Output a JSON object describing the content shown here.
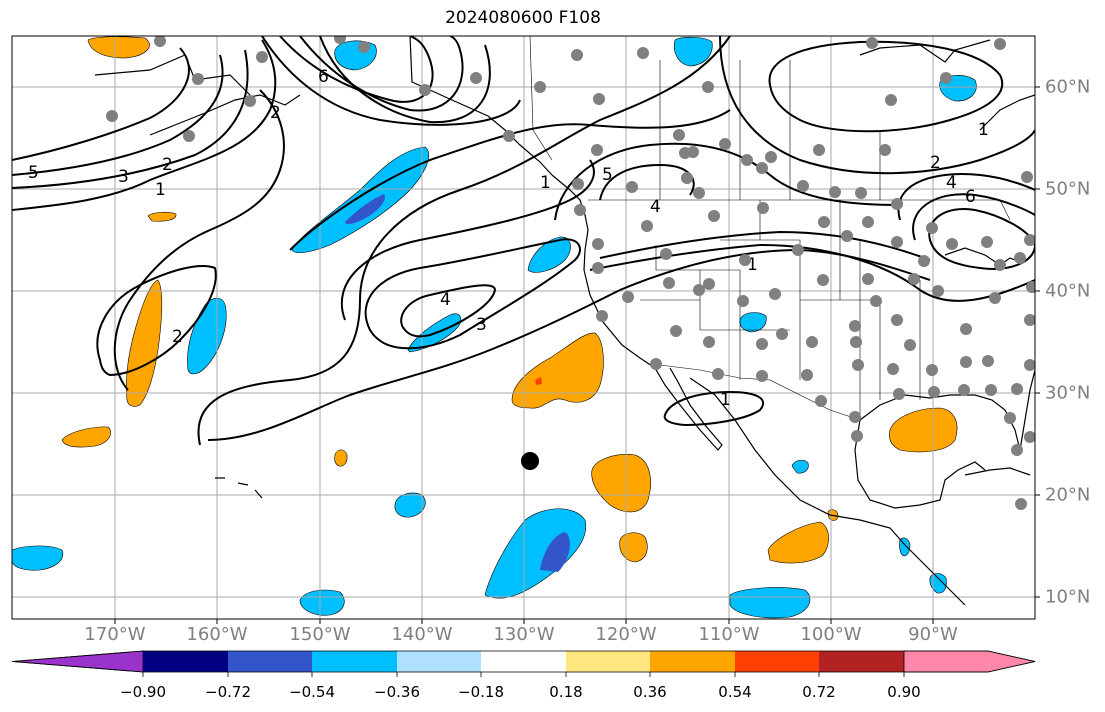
{
  "title": "2024080600 F108",
  "lon_labels": [
    "170°W",
    "160°W",
    "150°W",
    "140°W",
    "130°W",
    "120°W",
    "110°W",
    "100°W",
    "90°W"
  ],
  "lat_labels": [
    "60°N",
    "50°N",
    "40°N",
    "30°N",
    "20°N",
    "10°N"
  ],
  "colorbar": {
    "tick_labels": [
      "−0.90",
      "−0.72",
      "−0.54",
      "−0.36",
      "−0.18",
      "0.18",
      "0.36",
      "0.54",
      "0.72",
      "0.90"
    ],
    "colors": [
      "#9933cc",
      "#000080",
      "#3355cc",
      "#00bfff",
      "#b0e0ff",
      "#ffffff",
      "#ffe680",
      "#ffa500",
      "#ff4000",
      "#b22222",
      "#ff88aa"
    ]
  },
  "contour_labels": [
    "5",
    "3",
    "2",
    "1",
    "2",
    "4",
    "3",
    "5",
    "4",
    "1",
    "1",
    "2",
    "4",
    "6",
    "1",
    "2",
    "6",
    "1"
  ],
  "marker": "storm-center-dot",
  "colors": {
    "contour": "#000000",
    "coast": "#000000",
    "gridline": "#aaaaaa",
    "station": "#808080"
  }
}
